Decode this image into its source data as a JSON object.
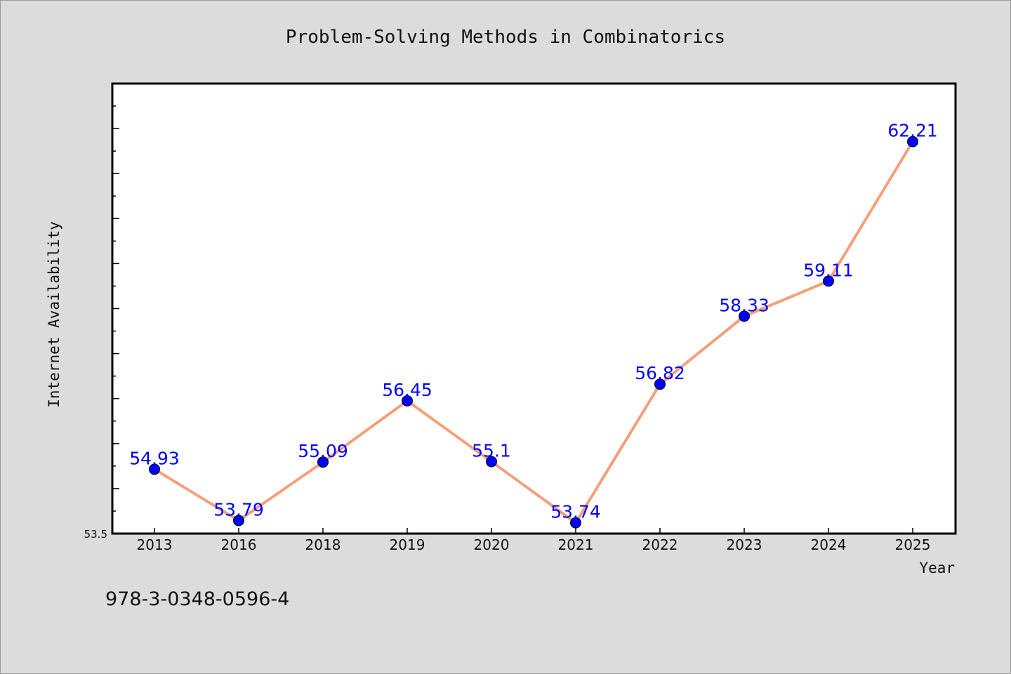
{
  "chart_data": {
    "type": "line",
    "title": "Problem-Solving Methods in Combinatorics",
    "xlabel": "Year",
    "ylabel": "Internet Availability",
    "categories": [
      "2013",
      "2016",
      "2018",
      "2019",
      "2020",
      "2021",
      "2022",
      "2023",
      "2024",
      "2025"
    ],
    "values": [
      54.93,
      53.79,
      55.09,
      56.45,
      55.1,
      53.74,
      56.82,
      58.33,
      59.11,
      62.21
    ],
    "data_labels": [
      "54.93",
      "53.79",
      "55.09",
      "56.45",
      "55.1",
      "53.74",
      "56.82",
      "58.33",
      "59.11",
      "62.21"
    ],
    "ylim": [
      53.5,
      63.5
    ],
    "y_tick_label": "53.5",
    "line_color": "#f4a07a",
    "marker_color": "#0000ff",
    "label_color": "#0000ff",
    "grid": false
  },
  "footer_text": "978-3-0348-0596-4"
}
